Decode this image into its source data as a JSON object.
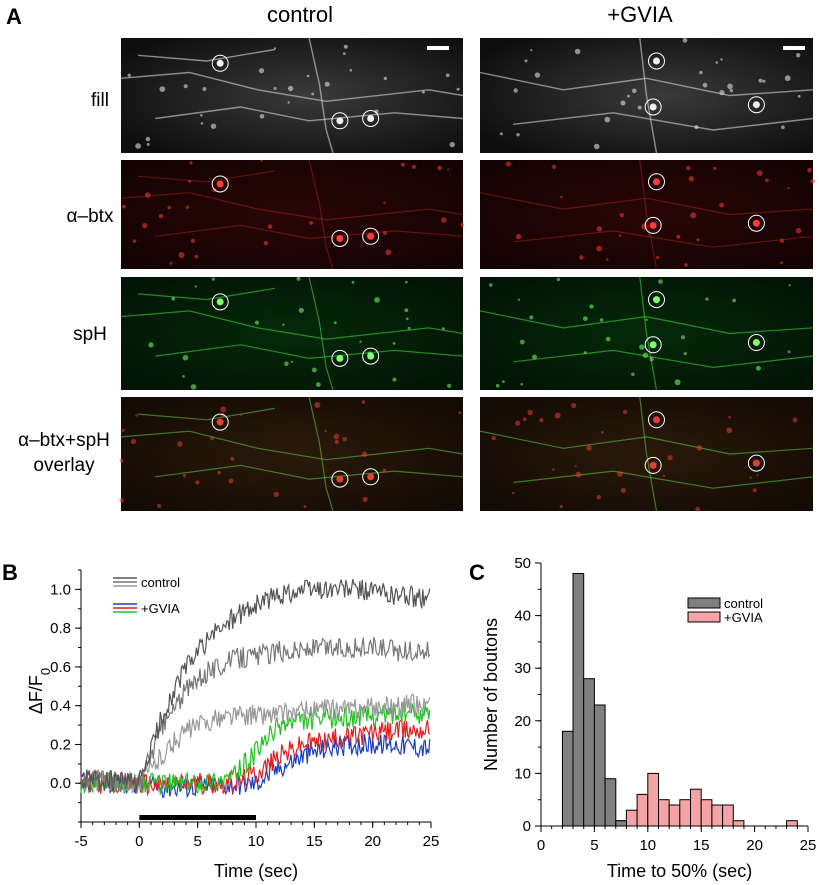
{
  "panel_a": {
    "letter": "A",
    "columns": [
      "control",
      "+GVIA"
    ],
    "rows": [
      {
        "label": "fill",
        "tint": "gray"
      },
      {
        "label": "α–btx",
        "tint": "red"
      },
      {
        "label": "spH",
        "tint": "green"
      },
      {
        "label": [
          "α–btx+spH",
          "overlay"
        ],
        "tint": "overlay"
      }
    ]
  },
  "panel_b": {
    "letter": "B",
    "chart_data": {
      "type": "line",
      "xlabel": "Time (sec)",
      "ylabel": "ΔF/F0",
      "ylabel_main": "ΔF/F",
      "ylabel_sub": "0",
      "xlim": [
        -5,
        25
      ],
      "ylim": [
        -0.2,
        1.1
      ],
      "xticks": [
        -5,
        0,
        5,
        10,
        15,
        20,
        25
      ],
      "yticks": [
        0.0,
        0.2,
        0.4,
        0.6,
        0.8,
        1.0
      ],
      "ytick_labels": [
        "0.0",
        "0.2",
        "0.4",
        "0.6",
        "0.8",
        "1.0"
      ],
      "stimulus_bar": [
        0,
        10
      ],
      "legend": [
        {
          "name": "control",
          "colors": [
            "#555555",
            "#777777",
            "#999999"
          ]
        },
        {
          "name": "+GVIA",
          "colors": [
            "#1a3fc4",
            "#e02020",
            "#22c022"
          ]
        }
      ],
      "series": [
        {
          "group": "control",
          "color": "#555555",
          "x": [
            -5,
            0,
            2,
            4,
            6,
            8,
            10,
            12,
            14,
            16,
            18,
            20,
            22,
            25
          ],
          "y": [
            0.02,
            0.0,
            0.35,
            0.6,
            0.75,
            0.85,
            0.92,
            0.97,
            1.0,
            1.0,
            1.0,
            0.99,
            0.97,
            0.95
          ]
        },
        {
          "group": "control",
          "color": "#777777",
          "x": [
            -5,
            0,
            2,
            4,
            6,
            8,
            10,
            12,
            14,
            16,
            18,
            20,
            22,
            25
          ],
          "y": [
            0.02,
            0.0,
            0.3,
            0.48,
            0.58,
            0.64,
            0.66,
            0.68,
            0.69,
            0.7,
            0.7,
            0.7,
            0.68,
            0.68
          ]
        },
        {
          "group": "control",
          "color": "#999999",
          "x": [
            -5,
            0,
            2,
            4,
            6,
            8,
            10,
            12,
            14,
            16,
            18,
            20,
            22,
            25
          ],
          "y": [
            0.02,
            0.0,
            0.15,
            0.27,
            0.32,
            0.35,
            0.35,
            0.36,
            0.37,
            0.38,
            0.38,
            0.39,
            0.4,
            0.41
          ]
        },
        {
          "group": "+GVIA",
          "color": "#1a3fc4",
          "x": [
            -5,
            0,
            2,
            4,
            6,
            8,
            10,
            12,
            14,
            16,
            18,
            20,
            22,
            25
          ],
          "y": [
            0.0,
            0.0,
            -0.02,
            -0.02,
            -0.01,
            -0.01,
            0.0,
            0.08,
            0.14,
            0.18,
            0.2,
            0.2,
            0.2,
            0.18
          ]
        },
        {
          "group": "+GVIA",
          "color": "#e02020",
          "x": [
            -5,
            0,
            2,
            4,
            6,
            8,
            10,
            12,
            14,
            16,
            18,
            20,
            22,
            25
          ],
          "y": [
            0.0,
            0.0,
            -0.01,
            0.0,
            0.0,
            0.0,
            0.05,
            0.14,
            0.2,
            0.22,
            0.24,
            0.26,
            0.27,
            0.28
          ]
        },
        {
          "group": "+GVIA",
          "color": "#22c022",
          "x": [
            -5,
            0,
            2,
            4,
            6,
            8,
            10,
            12,
            14,
            16,
            18,
            20,
            22,
            25
          ],
          "y": [
            0.0,
            0.0,
            0.0,
            0.0,
            0.01,
            0.03,
            0.16,
            0.3,
            0.32,
            0.33,
            0.34,
            0.35,
            0.36,
            0.36
          ]
        }
      ]
    }
  },
  "panel_c": {
    "letter": "C",
    "chart_data": {
      "type": "bar",
      "xlabel": "Time to 50% (sec)",
      "ylabel": "Number of boutons",
      "xlim": [
        0,
        25
      ],
      "ylim": [
        0,
        50
      ],
      "xticks": [
        0,
        5,
        10,
        15,
        20,
        25
      ],
      "yticks": [
        0,
        10,
        20,
        30,
        40,
        50
      ],
      "bin_width": 1,
      "series": [
        {
          "name": "control",
          "color": "#808080",
          "bin_starts": [
            2,
            3,
            4,
            5,
            6,
            7
          ],
          "counts": [
            18,
            48,
            28,
            23,
            9,
            1
          ]
        },
        {
          "name": "+GVIA",
          "color": "#f4a4a4",
          "bin_starts": [
            7,
            8,
            9,
            10,
            11,
            12,
            13,
            14,
            15,
            16,
            17,
            18,
            23
          ],
          "counts": [
            1,
            3,
            6,
            10,
            5,
            4,
            5,
            7,
            5,
            4,
            4,
            1,
            1
          ]
        }
      ]
    }
  }
}
